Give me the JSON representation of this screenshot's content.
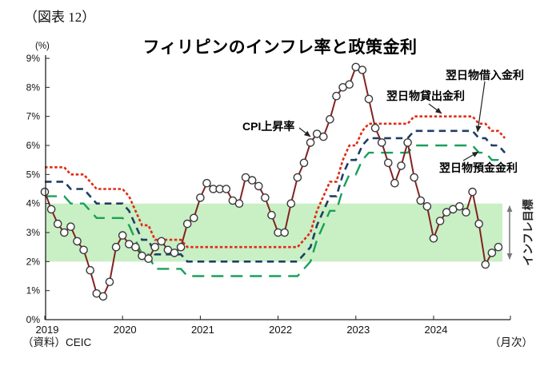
{
  "header": {
    "figure_label": "（図表 12）"
  },
  "footer": {
    "source": "（資料）CEIC",
    "frequency": "（月次）"
  },
  "chart_data": {
    "type": "line",
    "title": "フィリピンのインフレ率と政策金利",
    "y_unit": "(%)",
    "x_unit": "（月次）",
    "ylim": [
      0,
      9
    ],
    "y_ticks": [
      "0%",
      "1%",
      "2%",
      "3%",
      "4%",
      "5%",
      "6%",
      "7%",
      "8%",
      "9%"
    ],
    "x_tick_years": [
      "2019",
      "2020",
      "2021",
      "2022",
      "2023",
      "2024"
    ],
    "x_frequency": "monthly",
    "x_range": "2019-01 .. 2024-12",
    "grid": false,
    "target_band": {
      "low": 2,
      "high": 4,
      "color": "#c9efc5",
      "label": "インフレ目標"
    },
    "series": [
      {
        "key": "cpi",
        "name": "CPI上昇率",
        "color": "#822222",
        "width": 2,
        "marker": "circle",
        "values": [
          4.4,
          3.8,
          3.3,
          3.0,
          3.2,
          2.7,
          2.4,
          1.7,
          0.9,
          0.8,
          1.3,
          2.5,
          2.9,
          2.6,
          2.5,
          2.2,
          2.1,
          2.5,
          2.7,
          2.4,
          2.3,
          2.5,
          3.3,
          3.5,
          4.2,
          4.7,
          4.5,
          4.5,
          4.5,
          4.1,
          4.0,
          4.9,
          4.8,
          4.6,
          4.2,
          3.6,
          3.0,
          3.0,
          4.0,
          4.9,
          5.4,
          6.1,
          6.4,
          6.3,
          6.9,
          7.7,
          8.0,
          8.1,
          8.7,
          8.6,
          7.6,
          6.6,
          6.1,
          5.4,
          4.7,
          5.3,
          6.1,
          4.9,
          4.1,
          3.9,
          2.8,
          3.4,
          3.7,
          3.8,
          3.9,
          3.7,
          4.4,
          3.3,
          1.9,
          2.3,
          2.5
        ]
      },
      {
        "key": "lending",
        "name": "翌日物貸出金利",
        "color": "#e02b16",
        "width": 2.6,
        "dash": "3.5 2.6",
        "values": [
          5.25,
          5.25,
          5.25,
          5.25,
          5.0,
          5.0,
          5.0,
          4.75,
          4.5,
          4.5,
          4.5,
          4.5,
          4.5,
          4.25,
          3.75,
          3.25,
          3.25,
          2.75,
          2.75,
          2.75,
          2.75,
          2.75,
          2.5,
          2.5,
          2.5,
          2.5,
          2.5,
          2.5,
          2.5,
          2.5,
          2.5,
          2.5,
          2.5,
          2.5,
          2.5,
          2.5,
          2.5,
          2.5,
          2.5,
          2.5,
          2.75,
          3.0,
          3.75,
          4.25,
          4.75,
          4.75,
          5.5,
          6.0,
          6.0,
          6.5,
          6.75,
          6.75,
          6.75,
          6.75,
          6.75,
          6.75,
          6.75,
          7.0,
          7.0,
          7.0,
          7.0,
          7.0,
          7.0,
          7.0,
          7.0,
          7.0,
          7.0,
          6.75,
          6.75,
          6.5,
          6.5,
          6.25
        ]
      },
      {
        "key": "borrowing",
        "name": "翌日物借入金利",
        "color": "#1e3f63",
        "width": 2.6,
        "dash": "8.5 6",
        "values": [
          4.75,
          4.75,
          4.75,
          4.75,
          4.5,
          4.5,
          4.5,
          4.25,
          4.0,
          4.0,
          4.0,
          4.0,
          4.0,
          3.75,
          3.25,
          2.75,
          2.75,
          2.25,
          2.25,
          2.25,
          2.25,
          2.25,
          2.0,
          2.0,
          2.0,
          2.0,
          2.0,
          2.0,
          2.0,
          2.0,
          2.0,
          2.0,
          2.0,
          2.0,
          2.0,
          2.0,
          2.0,
          2.0,
          2.0,
          2.0,
          2.25,
          2.5,
          3.25,
          3.75,
          4.25,
          4.25,
          5.0,
          5.5,
          5.5,
          6.0,
          6.25,
          6.25,
          6.25,
          6.25,
          6.25,
          6.25,
          6.25,
          6.5,
          6.5,
          6.5,
          6.5,
          6.5,
          6.5,
          6.5,
          6.5,
          6.5,
          6.5,
          6.25,
          6.25,
          6.0,
          6.0,
          5.75
        ]
      },
      {
        "key": "deposit",
        "name": "翌日物預金金利",
        "color": "#1aa05a",
        "width": 2.4,
        "dash": "15 9",
        "values": [
          4.25,
          4.25,
          4.25,
          4.25,
          4.0,
          4.0,
          4.0,
          3.75,
          3.5,
          3.5,
          3.5,
          3.5,
          3.5,
          3.25,
          2.75,
          2.25,
          2.25,
          1.75,
          1.75,
          1.75,
          1.75,
          1.75,
          1.5,
          1.5,
          1.5,
          1.5,
          1.5,
          1.5,
          1.5,
          1.5,
          1.5,
          1.5,
          1.5,
          1.5,
          1.5,
          1.5,
          1.5,
          1.5,
          1.5,
          1.5,
          1.75,
          2.0,
          2.75,
          3.25,
          3.75,
          3.75,
          4.5,
          5.0,
          5.0,
          5.5,
          5.75,
          5.75,
          5.75,
          5.75,
          5.75,
          5.75,
          5.75,
          6.0,
          6.0,
          6.0,
          6.0,
          6.0,
          6.0,
          6.0,
          6.0,
          6.0,
          6.0,
          5.75,
          5.75,
          5.5,
          5.5,
          5.25
        ]
      }
    ]
  }
}
